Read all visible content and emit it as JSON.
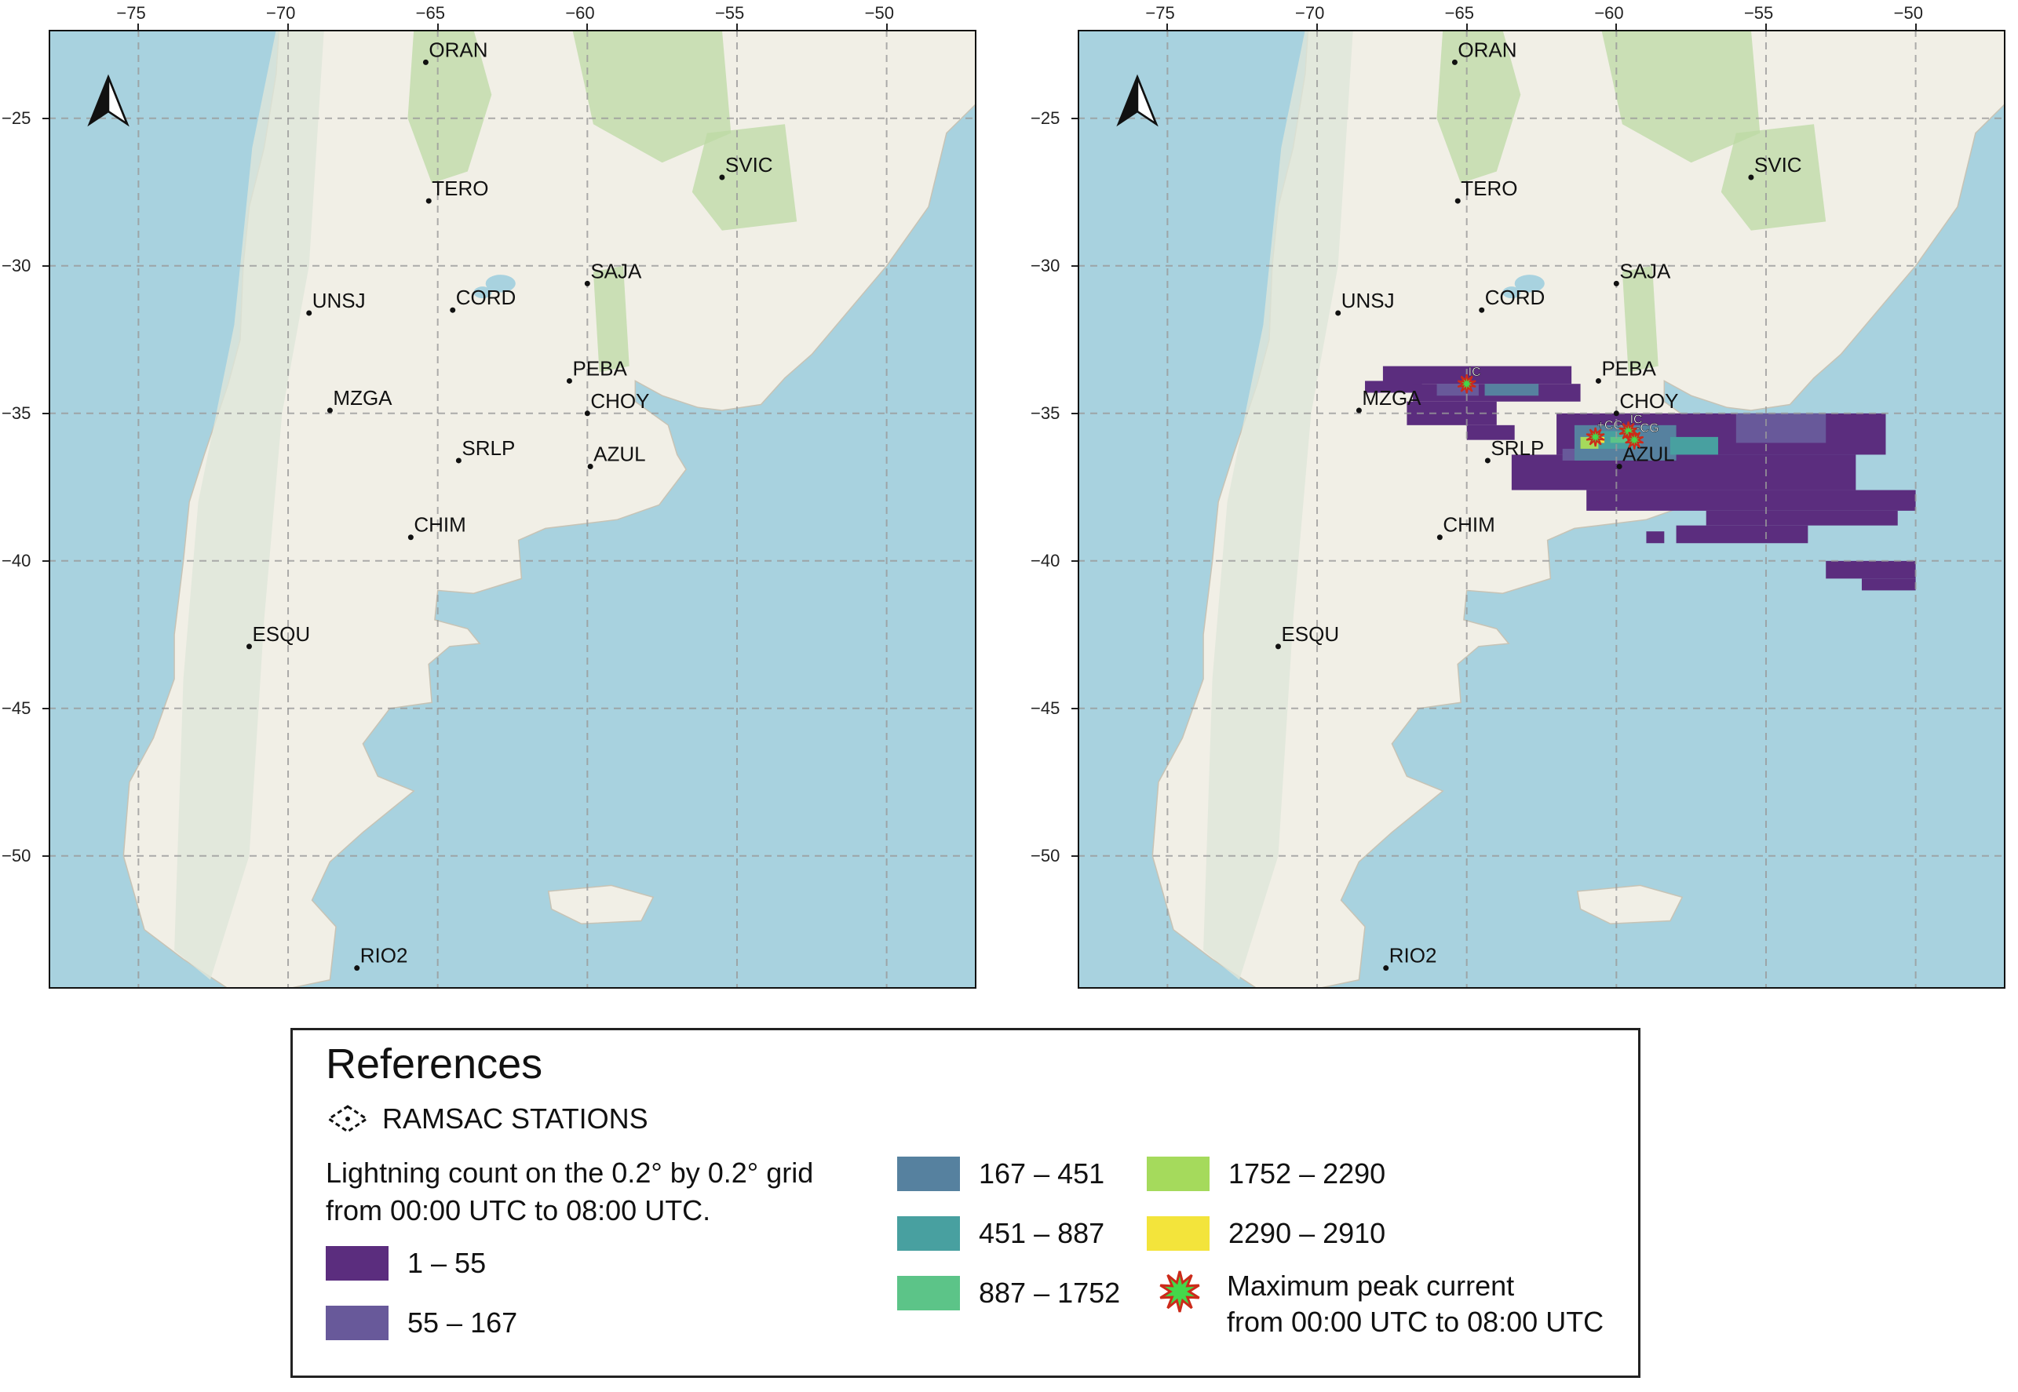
{
  "axes": {
    "lon_ticks": [
      "−75",
      "−70",
      "−65",
      "−60",
      "−55",
      "−50"
    ],
    "lat_ticks": [
      "−25",
      "−30",
      "−35",
      "−40",
      "−45",
      "−50"
    ],
    "lon_range": [
      -78,
      -47
    ],
    "lat_range": [
      -22,
      -54.5
    ]
  },
  "stations": [
    {
      "name": "ORAN",
      "lon": -65.4,
      "lat": -23.1
    },
    {
      "name": "TERO",
      "lon": -65.3,
      "lat": -27.8
    },
    {
      "name": "SVIC",
      "lon": -55.5,
      "lat": -27.0
    },
    {
      "name": "SAJA",
      "lon": -60.0,
      "lat": -30.6
    },
    {
      "name": "UNSJ",
      "lon": -69.3,
      "lat": -31.6
    },
    {
      "name": "CORD",
      "lon": -64.5,
      "lat": -31.5
    },
    {
      "name": "PEBA",
      "lon": -60.6,
      "lat": -33.9
    },
    {
      "name": "CHOY",
      "lon": -60.0,
      "lat": -35.0
    },
    {
      "name": "MZGA",
      "lon": -68.6,
      "lat": -34.9
    },
    {
      "name": "SRLP",
      "lon": -64.3,
      "lat": -36.6
    },
    {
      "name": "AZUL",
      "lon": -59.9,
      "lat": -36.8
    },
    {
      "name": "CHIM",
      "lon": -65.9,
      "lat": -39.2
    },
    {
      "name": "ESQU",
      "lon": -71.3,
      "lat": -42.9
    },
    {
      "name": "RIO2",
      "lon": -67.7,
      "lat": -53.8
    }
  ],
  "peaks": [
    {
      "label": "IC",
      "lon": -65.0,
      "lat": -34.0
    },
    {
      "label": "+CG",
      "lon": -60.7,
      "lat": -35.8
    },
    {
      "label": "IC",
      "lon": -59.6,
      "lat": -35.6
    },
    {
      "label": "-CG",
      "lon": -59.4,
      "lat": -35.9
    }
  ],
  "lightning_cells": [
    {
      "lon0": -67.8,
      "lon1": -61.5,
      "lat0": -33.4,
      "lat1": -34.0,
      "cls": 0
    },
    {
      "lon0": -68.4,
      "lon1": -66.5,
      "lat0": -33.9,
      "lat1": -34.3,
      "cls": 0
    },
    {
      "lon0": -66.8,
      "lon1": -61.2,
      "lat0": -34.0,
      "lat1": -34.6,
      "cls": 0
    },
    {
      "lon0": -67.0,
      "lon1": -64.0,
      "lat0": -34.6,
      "lat1": -35.4,
      "cls": 0
    },
    {
      "lon0": -65.0,
      "lon1": -63.4,
      "lat0": -35.4,
      "lat1": -35.9,
      "cls": 0
    },
    {
      "lon0": -62.0,
      "lon1": -51.0,
      "lat0": -35.0,
      "lat1": -36.4,
      "cls": 0
    },
    {
      "lon0": -63.5,
      "lon1": -52.0,
      "lat0": -36.4,
      "lat1": -37.6,
      "cls": 0
    },
    {
      "lon0": -61.0,
      "lon1": -50.0,
      "lat0": -37.6,
      "lat1": -38.3,
      "cls": 0
    },
    {
      "lon0": -57.0,
      "lon1": -50.6,
      "lat0": -38.3,
      "lat1": -38.8,
      "cls": 0
    },
    {
      "lon0": -58.0,
      "lon1": -53.6,
      "lat0": -38.8,
      "lat1": -39.4,
      "cls": 0
    },
    {
      "lon0": -59.0,
      "lon1": -58.4,
      "lat0": -39.0,
      "lat1": -39.4,
      "cls": 0
    },
    {
      "lon0": -53.0,
      "lon1": -50.0,
      "lat0": -40.0,
      "lat1": -40.6,
      "cls": 0
    },
    {
      "lon0": -51.8,
      "lon1": -50.0,
      "lat0": -40.6,
      "lat1": -41.0,
      "cls": 0
    },
    {
      "lon0": -56.0,
      "lon1": -53.0,
      "lat0": -35.0,
      "lat1": -36.0,
      "cls": 1
    },
    {
      "lon0": -61.8,
      "lon1": -60.4,
      "lat0": -36.2,
      "lat1": -36.6,
      "cls": 1
    },
    {
      "lon0": -66.0,
      "lon1": -64.6,
      "lat0": -34.0,
      "lat1": -34.4,
      "cls": 1
    },
    {
      "lon0": -64.4,
      "lon1": -62.6,
      "lat0": -34.0,
      "lat1": -34.4,
      "cls": 2
    },
    {
      "lon0": -61.4,
      "lon1": -58.0,
      "lat0": -35.4,
      "lat1": -36.6,
      "cls": 2
    },
    {
      "lon0": -58.2,
      "lon1": -56.6,
      "lat0": -35.8,
      "lat1": -36.4,
      "cls": 3
    },
    {
      "lon0": -60.6,
      "lon1": -59.2,
      "lat0": -35.6,
      "lat1": -36.2,
      "cls": 3
    },
    {
      "lon0": -60.2,
      "lon1": -59.4,
      "lat0": -35.8,
      "lat1": -36.0,
      "cls": 4
    },
    {
      "lon0": -61.2,
      "lon1": -60.6,
      "lat0": -35.8,
      "lat1": -36.2,
      "cls": 5
    },
    {
      "lon0": -60.8,
      "lon1": -60.4,
      "lat0": -35.8,
      "lat1": -36.0,
      "cls": 6
    }
  ],
  "legend": {
    "title": "References",
    "stations_label": "RAMSAC STATIONS",
    "count_desc_line1": "Lightning count on the 0.2° by  0.2° grid",
    "count_desc_line2": "from 00:00 UTC to  08:00 UTC.",
    "classes": [
      {
        "label": "1 – 55",
        "color": "#5b2d7e"
      },
      {
        "label": "55 – 167",
        "color": "#68599a"
      },
      {
        "label": "167 – 451",
        "color": "#56819f"
      },
      {
        "label": "451 – 887",
        "color": "#48a0a0"
      },
      {
        "label": "887 – 1752",
        "color": "#5cc488"
      },
      {
        "label": "1752 – 2290",
        "color": "#a5da5c"
      },
      {
        "label": "2290 – 2910",
        "color": "#f3e43b"
      }
    ],
    "peak_line1": "Maximum peak current",
    "peak_line2": "from 00:00 UTC to 08:00 UTC"
  },
  "colors": {
    "ocean": "#a8d2df",
    "land": "#f1efe6",
    "forest": "#bcd9a4",
    "andes": "#dfe6da",
    "star_fill": "#44d84a",
    "star_stroke": "#cc2a1a"
  }
}
